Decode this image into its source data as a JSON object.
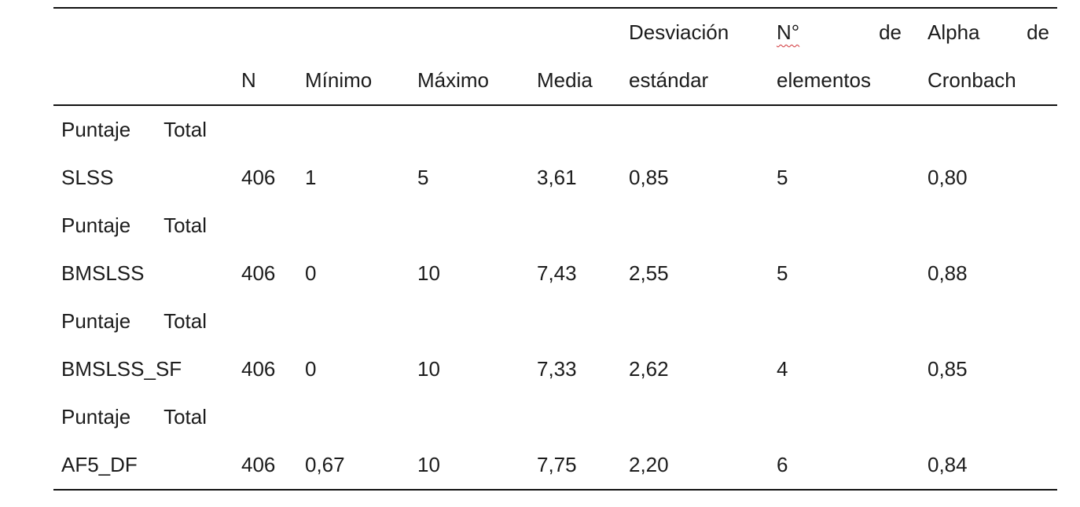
{
  "page": {
    "background": "#ffffff",
    "rule_color": "#111111",
    "text_color": "#1c1c1c",
    "spellcheck_squiggle_color": "#d13438"
  },
  "table": {
    "header": {
      "n": "N",
      "minimo": "Mínimo",
      "maximo": "Máximo",
      "media": "Media",
      "desviacion_l1": "Desviación",
      "desviacion_l2": "estándar",
      "n_elementos_l1a": "N°",
      "n_elementos_l1b": "de",
      "n_elementos_l2": "elementos",
      "alpha_l1a": "Alpha",
      "alpha_l1b": "de",
      "alpha_l2": "Cronbach"
    },
    "rows": [
      {
        "label1a": "Puntaje",
        "label1b": "Total",
        "label2": "SLSS",
        "n": "406",
        "minimo": "1",
        "maximo": "5",
        "media": "3,61",
        "desviacion": "0,85",
        "n_elementos": "5",
        "alpha": "0,80"
      },
      {
        "label1a": "Puntaje",
        "label1b": "Total",
        "label2": "BMSLSS",
        "n": "406",
        "minimo": "0",
        "maximo": "10",
        "media": "7,43",
        "desviacion": "2,55",
        "n_elementos": "5",
        "alpha": "0,88"
      },
      {
        "label1a": "Puntaje",
        "label1b": "Total",
        "label2": "BMSLSS_SF",
        "n": "406",
        "minimo": "0",
        "maximo": "10",
        "media": "7,33",
        "desviacion": "2,62",
        "n_elementos": "4",
        "alpha": "0,85"
      },
      {
        "label1a": "Puntaje",
        "label1b": "Total",
        "label2": "AF5_DF",
        "n": "406",
        "minimo": "0,67",
        "maximo": "10",
        "media": "7,75",
        "desviacion": "2,20",
        "n_elementos": "6",
        "alpha": "0,84"
      }
    ]
  }
}
